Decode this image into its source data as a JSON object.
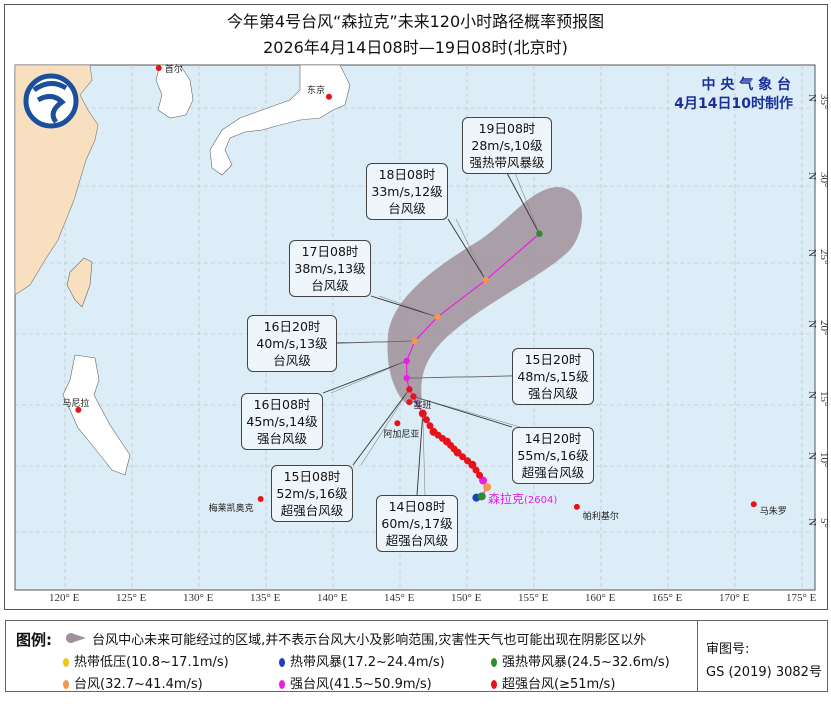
{
  "title": "今年第4号台风“森拉克”未来120小时路径概率预报图",
  "subtitle": "2026年4月14日08时—19日08时(北京时)",
  "agency": {
    "name": "中 央 气 象 台",
    "made": "4月14日10时制作"
  },
  "axes": {
    "lon_ticks": [
      "120° E",
      "125° E",
      "130° E",
      "135° E",
      "140° E",
      "145° E",
      "150° E",
      "155° E",
      "160° E",
      "165° E",
      "170° E",
      "175° E"
    ],
    "lat_ticks": [
      "5° N",
      "10° N",
      "15° N",
      "20° N",
      "25° N",
      "30° N",
      "35° N"
    ]
  },
  "typhoon": {
    "name": "森拉克",
    "code": "(2604)"
  },
  "cities": [
    {
      "name": "首尔",
      "lat": 37.5,
      "lon": 127.0
    },
    {
      "name": "东京",
      "lat": 35.7,
      "lon": 139.7
    },
    {
      "name": "马尼拉",
      "lat": 14.6,
      "lon": 121.0
    },
    {
      "name": "塞班",
      "lat": 15.2,
      "lon": 145.7
    },
    {
      "name": "阿加尼亚",
      "lat": 13.5,
      "lon": 144.8
    },
    {
      "name": "梅莱凯奥克",
      "lat": 7.5,
      "lon": 134.6
    },
    {
      "name": "帕利基尔",
      "lat": 6.9,
      "lon": 158.2
    },
    {
      "name": "马朱罗",
      "lat": 7.1,
      "lon": 171.4
    }
  ],
  "forecast": [
    {
      "time": "14日08时",
      "wind": "60m/s,17级",
      "level": "超强台风级",
      "lat": 14.3,
      "lon": 146.7,
      "color": "#e8121a"
    },
    {
      "time": "14日20时",
      "wind": "55m/s,16级",
      "level": "超强台风级",
      "lat": 15.6,
      "lon": 146.0,
      "color": "#e8121a"
    },
    {
      "time": "15日08时",
      "wind": "52m/s,16级",
      "level": "超强台风级",
      "lat": 16.1,
      "lon": 145.7,
      "color": "#e8121a"
    },
    {
      "time": "15日20时",
      "wind": "48m/s,15级",
      "level": "强台风级",
      "lat": 16.9,
      "lon": 145.5,
      "color": "#e91ee6"
    },
    {
      "time": "16日08时",
      "wind": "45m/s,14级",
      "level": "强台风级",
      "lat": 18.1,
      "lon": 145.5,
      "color": "#e91ee6"
    },
    {
      "time": "16日20时",
      "wind": "40m/s,13级",
      "level": "台风级",
      "lat": 19.5,
      "lon": 146.1,
      "color": "#f5964a"
    },
    {
      "time": "17日08时",
      "wind": "38m/s,13级",
      "level": "台风级",
      "lat": 21.2,
      "lon": 147.8,
      "color": "#f5964a"
    },
    {
      "time": "18日08时",
      "wind": "33m/s,12级",
      "level": "台风级",
      "lat": 23.8,
      "lon": 151.4,
      "color": "#f5964a"
    },
    {
      "time": "19日08时",
      "wind": "28m/s,10级",
      "level": "强热带风暴级",
      "lat": 26.9,
      "lon": 155.4,
      "color": "#2e8b2e"
    }
  ],
  "past_track": [
    {
      "lat": 7.6,
      "lon": 150.7,
      "color": "#1f3fbf"
    },
    {
      "lat": 7.7,
      "lon": 151.1,
      "color": "#2e8b2e"
    },
    {
      "lat": 8.4,
      "lon": 151.5,
      "color": "#f5964a"
    },
    {
      "lat": 8.9,
      "lon": 151.2,
      "color": "#e91ee6"
    },
    {
      "lat": 10.1,
      "lon": 150.4,
      "color": "#e8121a"
    },
    {
      "lat": 11.1,
      "lon": 149.3,
      "color": "#e8121a"
    },
    {
      "lat": 12.0,
      "lon": 148.5,
      "color": "#e8121a"
    },
    {
      "lat": 12.8,
      "lon": 147.5,
      "color": "#e8121a"
    },
    {
      "lat": 14.3,
      "lon": 146.7,
      "color": "#e8121a"
    }
  ],
  "legend": {
    "title": "图例:",
    "cone": "台风中心未来可能经过的区域,并不表示台风大小及影响范围,灾害性天气也可能出现在阴影区以外",
    "items": [
      {
        "label": "热带低压(10.8~17.1m/s)",
        "color": "#f0c419"
      },
      {
        "label": "热带风暴(17.2~24.4m/s)",
        "color": "#1f3fbf"
      },
      {
        "label": "强热带风暴(24.5~32.6m/s)",
        "color": "#2e8b2e"
      },
      {
        "label": "台风(32.7~41.4m/s)",
        "color": "#f5964a"
      },
      {
        "label": "强台风(41.5~50.9m/s)",
        "color": "#e91ee6"
      },
      {
        "label": "超强台风(≥51m/s)",
        "color": "#e8121a"
      }
    ],
    "review_label": "审图号:",
    "review_number": "GS (2019) 3082号"
  },
  "colors": {
    "ocean": "#dcedf8",
    "land_china": "#f7dfbf",
    "land_other": "#ffffff",
    "cone": "#a1909b",
    "track_line": "#e91ee6"
  }
}
